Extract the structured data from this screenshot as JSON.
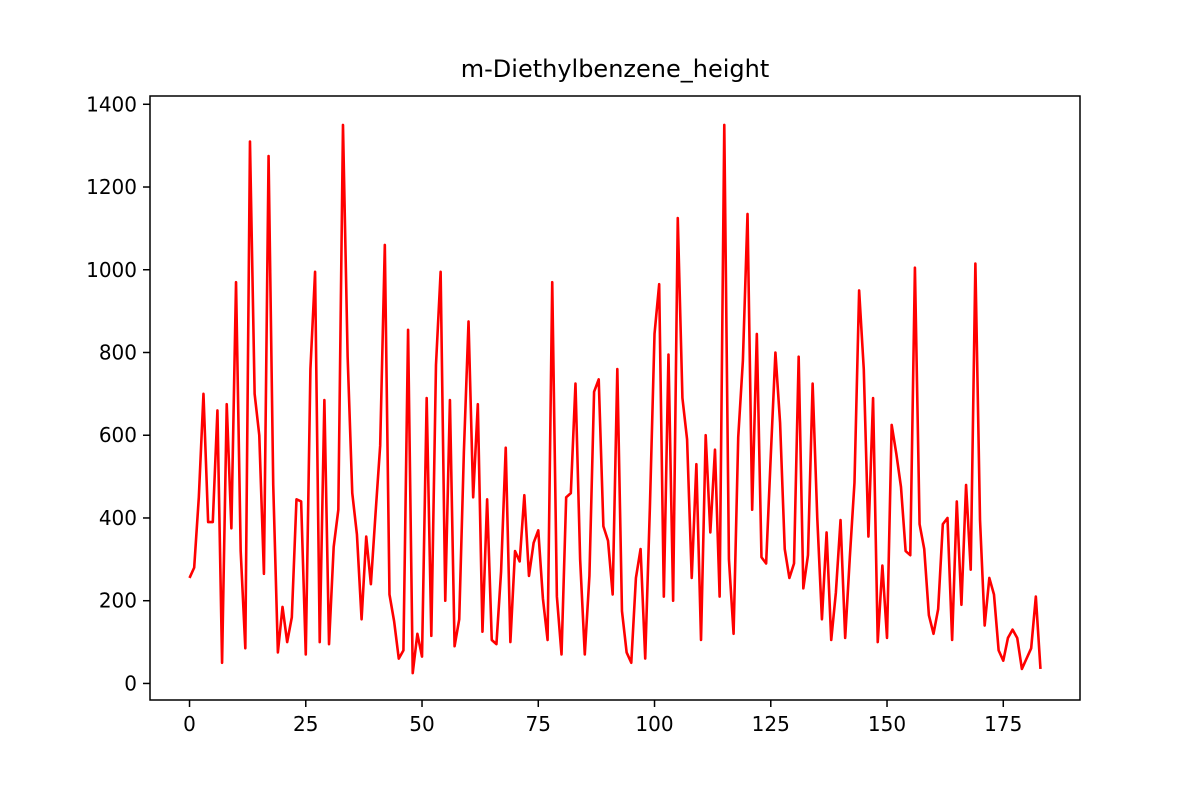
{
  "chart_data": {
    "type": "line",
    "title": "m-Diethylbenzene_height",
    "xlabel": "",
    "ylabel": "",
    "xlim": [
      -8.5,
      191.5
    ],
    "ylim": [
      -40,
      1420
    ],
    "x_ticks": [
      0,
      25,
      50,
      75,
      100,
      125,
      150,
      175
    ],
    "y_ticks": [
      0,
      200,
      400,
      600,
      800,
      1000,
      1200,
      1400
    ],
    "grid": false,
    "line_color": "#ff0000",
    "series": [
      {
        "values": [
          255,
          280,
          450,
          700,
          390,
          390,
          660,
          50,
          675,
          375,
          970,
          320,
          85,
          1310,
          700,
          600,
          265,
          1275,
          480,
          75,
          185,
          100,
          160,
          445,
          440,
          70,
          760,
          995,
          100,
          685,
          95,
          330,
          420,
          1350,
          790,
          460,
          360,
          155,
          355,
          240,
          410,
          575,
          1060,
          215,
          150,
          60,
          80,
          855,
          25,
          120,
          65,
          690,
          115,
          770,
          995,
          200,
          685,
          90,
          155,
          560,
          875,
          450,
          675,
          125,
          445,
          105,
          95,
          270,
          570,
          100,
          320,
          295,
          455,
          260,
          340,
          370,
          205,
          105,
          970,
          210,
          70,
          450,
          460,
          725,
          300,
          70,
          260,
          705,
          735,
          380,
          345,
          215,
          760,
          175,
          75,
          50,
          255,
          325,
          60,
          425,
          845,
          965,
          210,
          795,
          200,
          1125,
          690,
          590,
          255,
          530,
          105,
          600,
          365,
          565,
          210,
          1350,
          300,
          120,
          595,
          780,
          1135,
          420,
          845,
          305,
          290,
          550,
          800,
          630,
          325,
          255,
          290,
          790,
          230,
          310,
          725,
          400,
          155,
          365,
          105,
          220,
          395,
          110,
          305,
          485,
          950,
          760,
          355,
          690,
          100,
          285,
          110,
          625,
          555,
          475,
          320,
          310,
          1005,
          385,
          325,
          165,
          120,
          180,
          385,
          400,
          105,
          440,
          190,
          480,
          275,
          1015,
          395,
          140,
          255,
          215,
          80,
          55,
          110,
          130,
          110,
          35,
          60,
          85,
          210,
          35
        ]
      }
    ]
  }
}
